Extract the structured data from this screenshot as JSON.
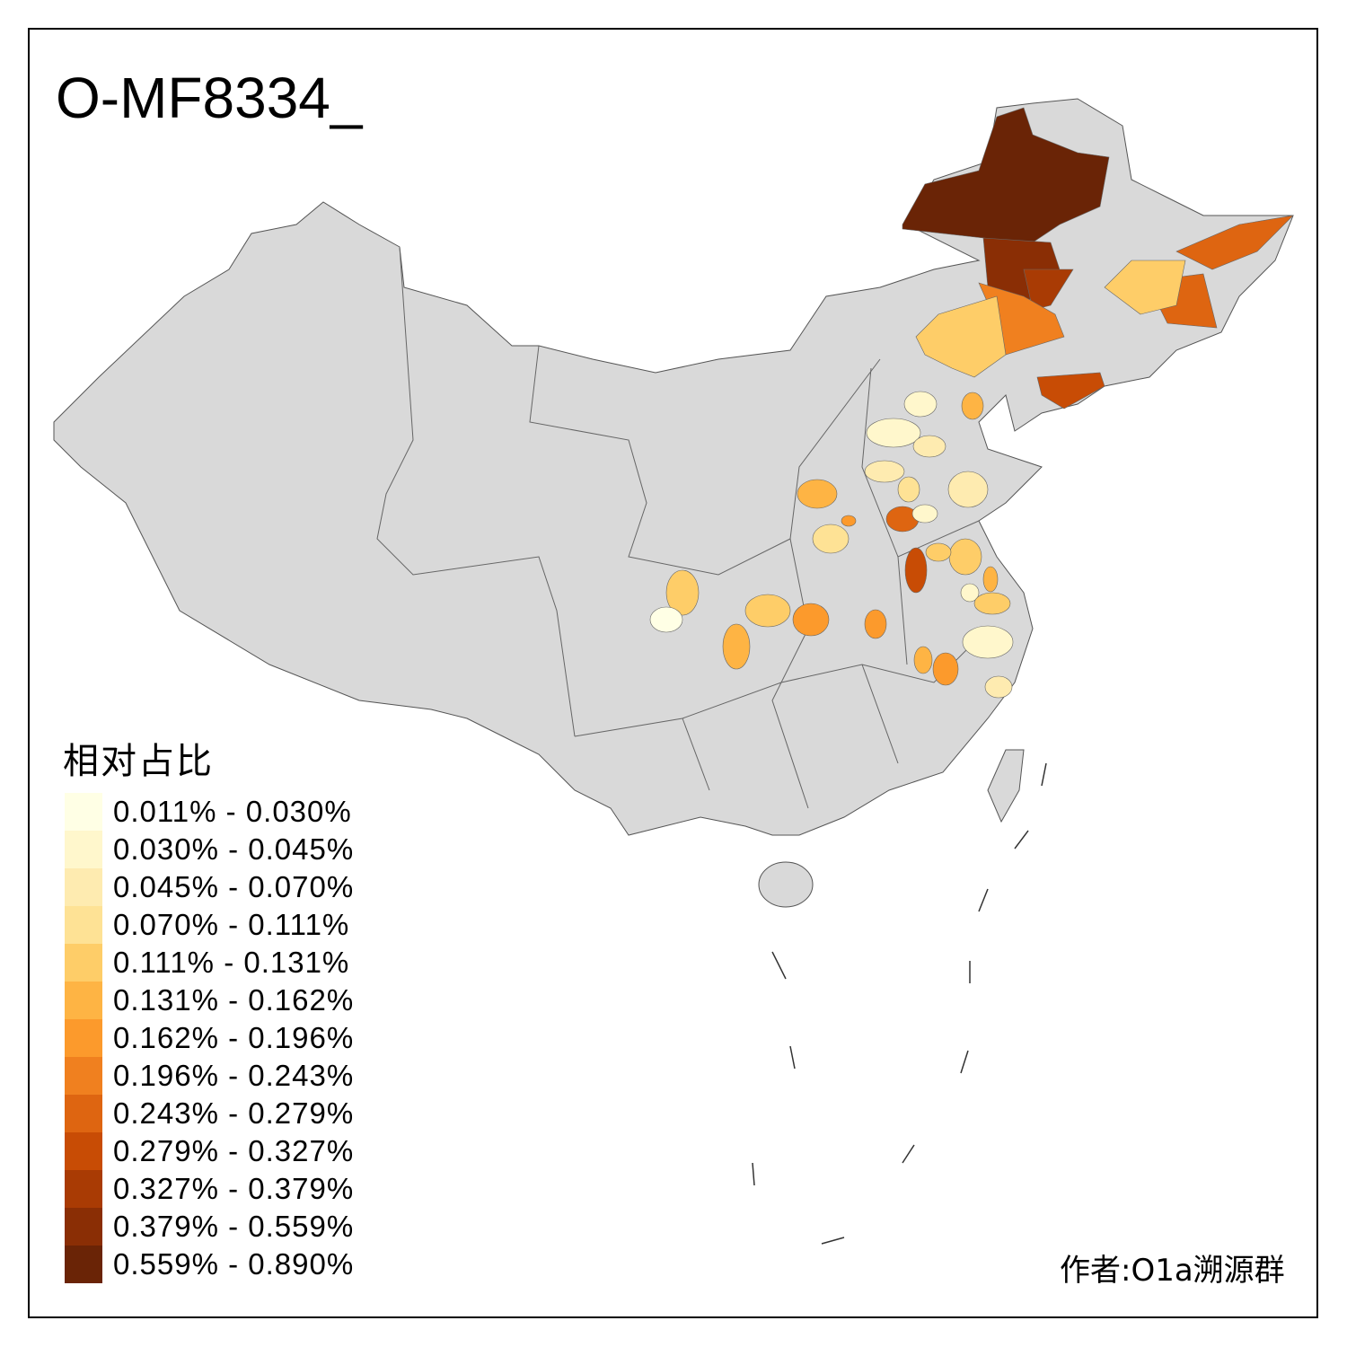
{
  "title": "O-MF8334_",
  "legend": {
    "title": "相对占比",
    "items": [
      {
        "label": "0.011% - 0.030%",
        "color": "#FFFFE5"
      },
      {
        "label": "0.030% - 0.045%",
        "color": "#FFF7CC"
      },
      {
        "label": "0.045% - 0.070%",
        "color": "#FEEBB0"
      },
      {
        "label": "0.070% - 0.111%",
        "color": "#FEE295"
      },
      {
        "label": "0.111% - 0.131%",
        "color": "#FECD68"
      },
      {
        "label": "0.131% - 0.162%",
        "color": "#FEB444"
      },
      {
        "label": "0.162% - 0.196%",
        "color": "#FC9A2C"
      },
      {
        "label": "0.196% - 0.243%",
        "color": "#F0801F"
      },
      {
        "label": "0.243% - 0.279%",
        "color": "#DE6511"
      },
      {
        "label": "0.279% - 0.327%",
        "color": "#C84C05"
      },
      {
        "label": "0.327% - 0.379%",
        "color": "#A93B04"
      },
      {
        "label": "0.379% - 0.559%",
        "color": "#8A2E05"
      },
      {
        "label": "0.559% - 0.890%",
        "color": "#6A2406"
      }
    ]
  },
  "base_color": "#D9D9D9",
  "credit": "作者:O1a溯源群"
}
